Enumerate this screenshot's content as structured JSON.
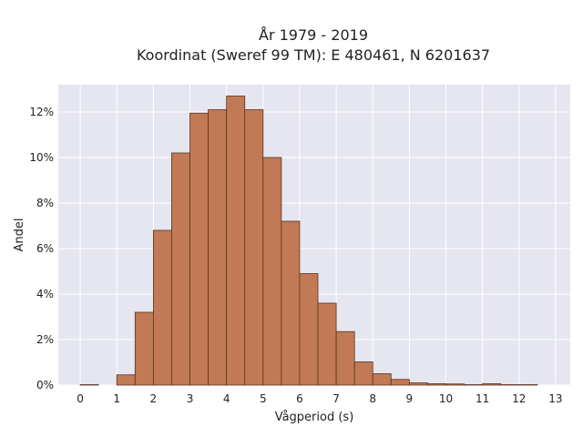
{
  "chart_data": {
    "type": "bar",
    "title_lines": [
      "År 1979 - 2019",
      "Koordinat (Sweref 99 TM): E 480461, N 6201637"
    ],
    "xlabel": "Vågperiod (s)",
    "ylabel": "Andel",
    "bin_width": 0.5,
    "bin_starts": [
      0,
      0.5,
      1,
      1.5,
      2,
      2.5,
      3,
      3.5,
      4,
      4.5,
      5,
      5.5,
      6,
      6.5,
      7,
      7.5,
      8,
      8.5,
      9,
      9.5,
      10,
      10.5,
      11,
      11.5,
      12
    ],
    "values": [
      0.02,
      0.0,
      0.45,
      3.2,
      6.8,
      10.2,
      11.95,
      12.1,
      12.7,
      12.1,
      10.0,
      7.2,
      4.9,
      3.6,
      2.35,
      1.02,
      0.5,
      0.25,
      0.1,
      0.06,
      0.05,
      0.02,
      0.06,
      0.02,
      0.02
    ],
    "xlim": [
      -0.6,
      13.4
    ],
    "ylim": [
      0,
      13.2
    ],
    "x_ticks": [
      0,
      1,
      2,
      3,
      4,
      5,
      6,
      7,
      8,
      9,
      10,
      11,
      12,
      13
    ],
    "y_ticks": [
      0,
      2,
      4,
      6,
      8,
      10,
      12
    ],
    "y_tick_labels": [
      "0%",
      "2%",
      "4%",
      "6%",
      "8%",
      "10%",
      "12%"
    ],
    "grid": true,
    "colors": {
      "bar": "#c17a55",
      "bar_edge": "#5a3320",
      "plot_bg": "#e5e6f0",
      "grid": "#ffffff"
    }
  }
}
